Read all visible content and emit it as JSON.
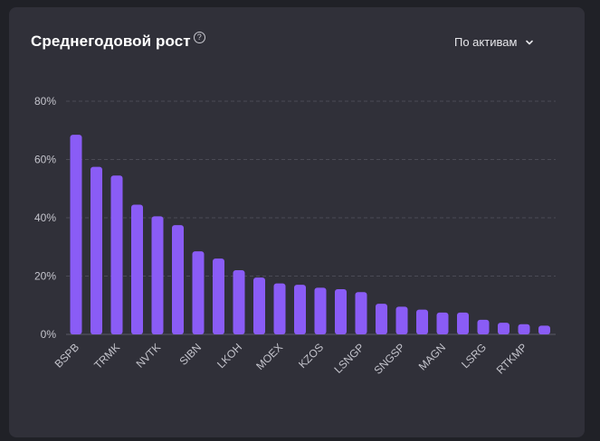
{
  "header": {
    "title": "Среднегодовой рост",
    "help_glyph": "?",
    "dropdown_label": "По активам"
  },
  "icons": {
    "help": "question-circle-icon",
    "dropdown": "chevron-down-icon"
  },
  "colors": {
    "bar": "#8a5cf6",
    "card": "#303039",
    "grid": "#4a4a55"
  },
  "chart_data": {
    "type": "bar",
    "title": "Среднегодовой рост",
    "xlabel": "",
    "ylabel": "",
    "ylim": [
      0,
      80
    ],
    "y_ticks": [
      "0%",
      "20%",
      "40%",
      "60%",
      "80%"
    ],
    "y_tick_values": [
      0,
      20,
      40,
      60,
      80
    ],
    "grid": true,
    "categories": [
      "BSPB",
      "",
      "TRMK",
      "",
      "NVTK",
      "",
      "SIBN",
      "",
      "LKOH",
      "",
      "MOEX",
      "",
      "KZOS",
      "",
      "LSNGP",
      "",
      "SNGSP",
      "",
      "MAGN",
      "",
      "LSRG",
      "",
      "RTKMP",
      ""
    ],
    "values": [
      68.5,
      57.5,
      54.5,
      44.5,
      40.5,
      37.5,
      28.5,
      26,
      22,
      19.5,
      17.5,
      17,
      16,
      15.5,
      14.5,
      10.5,
      9.5,
      8.5,
      7.5,
      7.5,
      5,
      4,
      3.5,
      3
    ]
  }
}
